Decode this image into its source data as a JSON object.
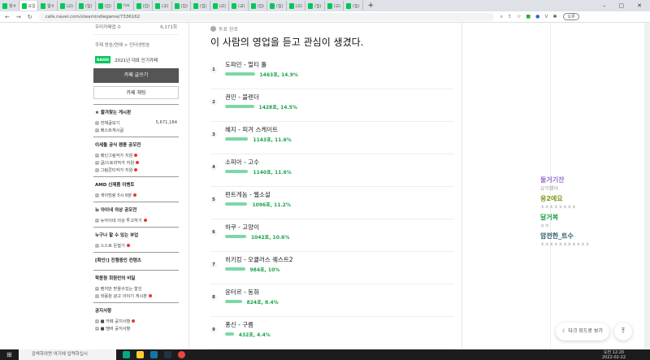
{
  "browser": {
    "tabs": [
      "항ㅎ",
      "요일",
      "웹ㅎ",
      "(교)",
      "(집)",
      "(집)",
      "(vs",
      "(집)",
      "(교)",
      "(집)",
      "(집)",
      "(교)",
      "(교)",
      "(집)",
      "(집)",
      "(교)",
      "(집)",
      "(교)",
      "(집)"
    ],
    "url": "cafe.naver.com/steamindiegame/7336162",
    "profile": "오류"
  },
  "sidebar": {
    "stats": [
      {
        "label": "우리카페앱 수",
        "value": "6,171회"
      }
    ],
    "topic": "주제  방송/연예 > 인터넷방송",
    "badge": "2021년 대표 인기카페",
    "badge_logo": "NAVER 대표카페",
    "write_button": "카페 글쓰기",
    "chat_button": "카페 채팅",
    "sections": [
      {
        "title": "★ 즐겨찾는 게시판",
        "items": [
          {
            "label": "전체글보기",
            "count": "5,671,184"
          },
          {
            "label": "베스트게시글"
          }
        ]
      },
      {
        "title": "이세돌 공식 팬툰 공모전",
        "items": [
          {
            "label": "메인그림작가 지원",
            "new": true
          },
          {
            "label": "글/스토리작가 지원",
            "new": true
          },
          {
            "label": "그림콘티작가 지원",
            "new": true
          }
        ]
      },
      {
        "title": "AMD 신제품 이벤트",
        "items": [
          {
            "label": "게이밍랑 5시 8분",
            "new": true
          }
        ]
      },
      {
        "title": "뉴 아이네 의상 공모전",
        "items": [
          {
            "label": "뉴아이네 의상 투고하기",
            "new": true
          }
        ]
      },
      {
        "title": "누구나 할 수 있는 부업",
        "items": [
          {
            "label": "스스로 돈벌기",
            "new": true
          }
        ]
      },
      {
        "title": "[확인!] 진행중인 컨텐츠",
        "items": []
      },
      {
        "title": "학몽원 회원만의 비밀",
        "items": [
          {
            "label": "팬치만 받을수있는 할인"
          },
          {
            "label": "학몽원 광고 이야기 게시판",
            "new": true
          }
        ]
      },
      {
        "title": "공지사항",
        "items": [
          {
            "label": "■ 카페 공지사항",
            "new": true
          },
          {
            "label": "■ 멤버 공지사항"
          }
        ]
      }
    ]
  },
  "poll": {
    "status": "투표 완료",
    "title": "이 사람의 영업을 듣고 관심이 생겼다.",
    "options": [
      {
        "rank": "1",
        "label": "도파민 - 멀티 툴",
        "votes": "1463표, 14.9%",
        "percent": 14.9
      },
      {
        "rank": "2",
        "label": "권민 - 블렌더",
        "votes": "1428표, 14.5%",
        "percent": 14.5
      },
      {
        "rank": "3",
        "label": "혜지 - 피겨 스케이트",
        "votes": "1143표, 11.6%",
        "percent": 11.6
      },
      {
        "rank": "4",
        "label": "소피아 - 고수",
        "votes": "1140표, 11.6%",
        "percent": 11.6
      },
      {
        "rank": "5",
        "label": "펀트게놈 - 웹소설",
        "votes": "1096표, 11.2%",
        "percent": 11.2
      },
      {
        "rank": "6",
        "label": "하쿠 - 고양이",
        "votes": "1042표, 10.6%",
        "percent": 10.6
      },
      {
        "rank": "7",
        "label": "히키킹 - 오큘러스 퀘스트2",
        "votes": "984표, 10%",
        "percent": 10
      },
      {
        "rank": "8",
        "label": "윤터르 - 동화",
        "votes": "824표, 8.4%",
        "percent": 8.4
      },
      {
        "rank": "9",
        "label": "퐁신 - 구름",
        "votes": "432표, 4.4%",
        "percent": 4.4
      }
    ]
  },
  "chat": [
    {
      "name": "둘거기잔",
      "msg": "유익했어",
      "color": "#9b6fd0"
    },
    {
      "name": "응2에요",
      "msg": "ㅊㅊㅊㅊㅊㅊㅊㅊ",
      "color": "#7a9a1a"
    },
    {
      "name": "달거복",
      "msg": "ㅎㅇ",
      "color": "#1aa34a"
    },
    {
      "name": "암전한_트수",
      "msg": "ㅊㅊㅊㅊㅊㅊㅊㅊㅊㅊㅊ",
      "color": "#2a5a6a"
    }
  ],
  "dark_mode": "다크 모드로 보기",
  "taskbar": {
    "search": "검색하려면 여기에 입력하십시",
    "time": "오전 12:20",
    "date": "2022-02-22"
  }
}
